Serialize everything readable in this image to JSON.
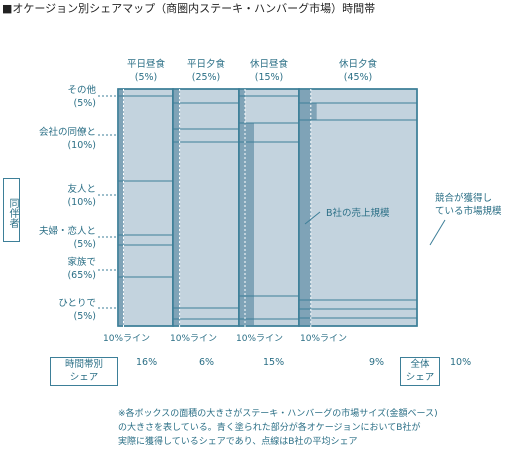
{
  "title": "■オケージョン別シェアマップ（商圏内ステーキ・ハンバーグ市場）時間帯",
  "side_label": "同伴者",
  "columns": [
    {
      "label": "平日昼食",
      "share": "(5%)"
    },
    {
      "label": "平日夕食",
      "share": "(25%)"
    },
    {
      "label": "休日昼食",
      "share": "(15%)"
    },
    {
      "label": "休日夕食",
      "share": "(45%)"
    }
  ],
  "rows": [
    {
      "label": "その他",
      "share": "(5%)"
    },
    {
      "label": "会社の同僚と",
      "share": "(10%)"
    },
    {
      "label": "友人と",
      "share": "(10%)"
    },
    {
      "label": "夫婦・恋人と",
      "share": "(5%)"
    },
    {
      "label": "家族で",
      "share": "(65%)"
    },
    {
      "label": "ひとりで",
      "share": "(5%)"
    }
  ],
  "line_label": "10%ライン",
  "time_share_label": "時間帯別\nシェア",
  "time_shares": [
    "16%",
    "6%",
    "15%",
    "9%"
  ],
  "total_share_label": "全体\nシェア",
  "total_share": "10%",
  "annotation_b_market": "B社の売上規模",
  "annotation_competitor": "競合が獲得し\nている市場規模",
  "footnote": "※各ボックスの面積の大きさがステーキ・ハンバーグの市場サイズ(金額ベース)\nの大きさを表している。青く塗られた部分が各オケージョンにおいてB社が\n実際に獲得しているシェアであり、点線はB社の平均シェア",
  "colors": {
    "box_fill": "#c3d3de",
    "b_share_fill": "#7fa3b7",
    "border": "#3d7f98",
    "text": "#2b6f86"
  },
  "chart_data": {
    "type": "mosaic",
    "columns_order": [
      "平日昼食",
      "平日夕食",
      "休日昼食",
      "休日夕食"
    ],
    "rows_order": [
      "その他",
      "会社の同僚と",
      "友人と",
      "夫婦・恋人と",
      "家族で",
      "ひとりで"
    ],
    "b_share_rows": {
      "平日昼食": [
        0.1,
        0.1,
        0.1,
        0.1,
        0.1,
        0.1
      ],
      "平日夕食": [
        0.1,
        0.1,
        0.1,
        0.1,
        0.1,
        0.1
      ],
      "休日昼食": [
        0.1,
        0.1,
        0.25,
        0.25,
        0.25,
        0.25
      ],
      "休日夕食": [
        0.1,
        0.15,
        0.1,
        0.1,
        0.1,
        0.1
      ]
    },
    "average_line": 0.1
  }
}
